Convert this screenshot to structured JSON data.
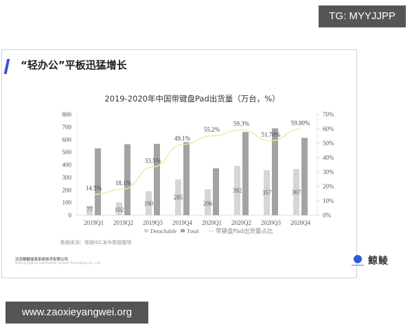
{
  "overlay": {
    "tg_badge": "TG: MYYJJPP",
    "url_badge": "www.zaoxieyangwei.org"
  },
  "slide": {
    "title": "“轻办公”平板迅猛增长",
    "source_note": "数据来源：根据IDC发布数据整理",
    "company_cn": "北京鲸鲮信息系统技术有限公司",
    "company_en": "Beijing Jingling Information System Technology Co., Ltd",
    "logo_text": "鲸鲮",
    "accent_color": "#3a4fd6"
  },
  "chart_data": {
    "type": "bar",
    "title": "2019-2020年中国带键盘Pad出货量（万台，%）",
    "categories": [
      "2019Q1",
      "2019Q2",
      "2019Q3",
      "2019Q4",
      "2020Q1",
      "2020Q2",
      "2020Q3",
      "2020Q4"
    ],
    "series": [
      {
        "name": "Detachable",
        "kind": "bar",
        "axis": "left",
        "color": "#d6d6d6",
        "values": [
          77,
          102,
          190,
          285,
          206,
          392,
          357,
          367
        ],
        "labels": [
          "77",
          "102",
          "190",
          "285",
          "206",
          "392",
          "357",
          "367"
        ]
      },
      {
        "name": "Total",
        "kind": "bar",
        "axis": "left",
        "color": "#a3a3a3",
        "values": [
          531,
          564,
          567,
          580,
          373,
          661,
          690,
          614
        ]
      },
      {
        "name": "带键盘Pad出货量占比",
        "kind": "line",
        "axis": "right",
        "color": "#ece9a6",
        "values": [
          14.5,
          18.1,
          33.5,
          49.1,
          55.2,
          59.3,
          51.7,
          59.8
        ],
        "labels": [
          "14.5%",
          "18.1%",
          "33.5%",
          "49.1%",
          "55.2%",
          "59.3%",
          "51.70%",
          "59.80%"
        ]
      }
    ],
    "left_axis": {
      "ylim": [
        0,
        800
      ],
      "ticks": [
        "0",
        "100",
        "200",
        "300",
        "400",
        "500",
        "600",
        "700",
        "800"
      ]
    },
    "right_axis": {
      "ylim": [
        0,
        70
      ],
      "ticks": [
        "0%",
        "10%",
        "20%",
        "30%",
        "40%",
        "50%",
        "60%",
        "70%"
      ]
    },
    "legend": [
      "Detachable",
      "Total",
      "带键盘Pad出货量占比"
    ],
    "legend_position": "bottom",
    "grid": false,
    "xlabel": "",
    "ylabel": ""
  }
}
